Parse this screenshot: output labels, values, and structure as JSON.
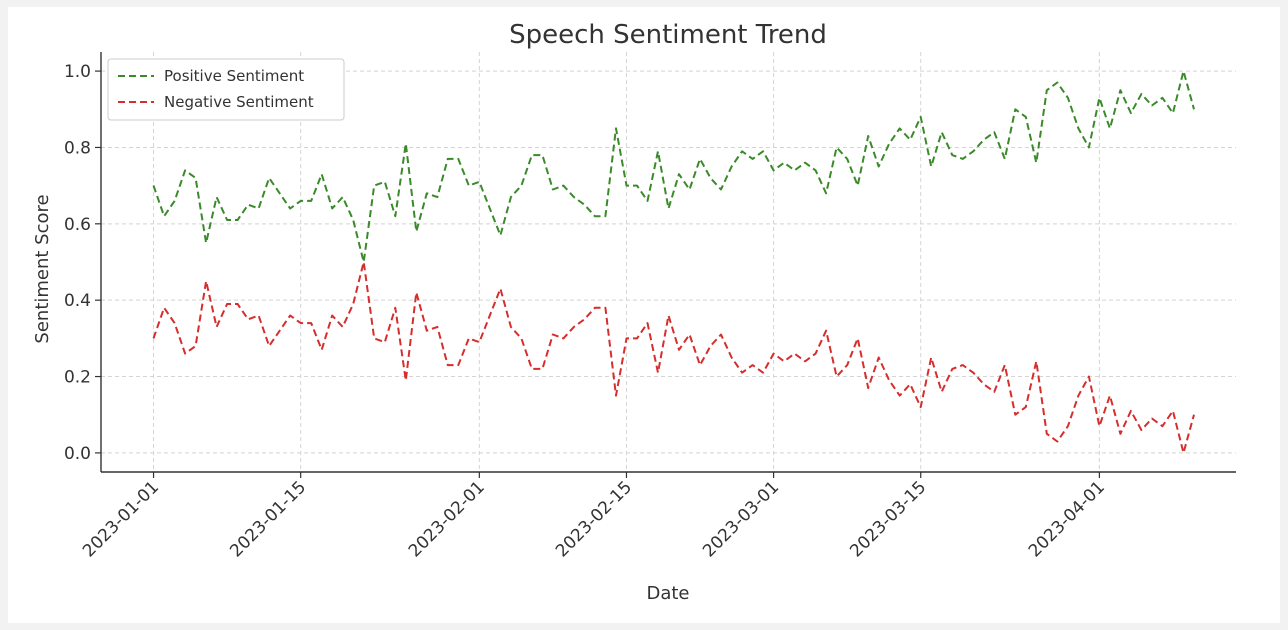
{
  "chart_data": {
    "type": "line",
    "title": "Speech Sentiment Trend",
    "xlabel": "Date",
    "ylabel": "Sentiment Score",
    "ylim": [
      -0.05,
      1.05
    ],
    "xlim": [
      "2022-12-27",
      "2023-04-14"
    ],
    "grid": true,
    "grid_style": "dashed",
    "legend_position": "top-left",
    "x_ticks": [
      "2023-01-01",
      "2023-01-15",
      "2023-02-01",
      "2023-02-15",
      "2023-03-01",
      "2023-03-15",
      "2023-04-01"
    ],
    "y_ticks": [
      "0.0",
      "0.2",
      "0.4",
      "0.6",
      "0.8",
      "1.0"
    ],
    "x": [
      "2023-01-01",
      "2023-01-02",
      "2023-01-03",
      "2023-01-04",
      "2023-01-05",
      "2023-01-06",
      "2023-01-07",
      "2023-01-08",
      "2023-01-09",
      "2023-01-10",
      "2023-01-11",
      "2023-01-12",
      "2023-01-13",
      "2023-01-14",
      "2023-01-15",
      "2023-01-16",
      "2023-01-17",
      "2023-01-18",
      "2023-01-19",
      "2023-01-20",
      "2023-01-21",
      "2023-01-22",
      "2023-01-23",
      "2023-01-24",
      "2023-01-25",
      "2023-01-26",
      "2023-01-27",
      "2023-01-28",
      "2023-01-29",
      "2023-01-30",
      "2023-01-31",
      "2023-02-01",
      "2023-02-02",
      "2023-02-03",
      "2023-02-04",
      "2023-02-05",
      "2023-02-06",
      "2023-02-07",
      "2023-02-08",
      "2023-02-09",
      "2023-02-10",
      "2023-02-11",
      "2023-02-12",
      "2023-02-13",
      "2023-02-14",
      "2023-02-15",
      "2023-02-16",
      "2023-02-17",
      "2023-02-18",
      "2023-02-19",
      "2023-02-20",
      "2023-02-21",
      "2023-02-22",
      "2023-02-23",
      "2023-02-24",
      "2023-02-25",
      "2023-02-26",
      "2023-02-27",
      "2023-02-28",
      "2023-03-01",
      "2023-03-02",
      "2023-03-03",
      "2023-03-04",
      "2023-03-05",
      "2023-03-06",
      "2023-03-07",
      "2023-03-08",
      "2023-03-09",
      "2023-03-10",
      "2023-03-11",
      "2023-03-12",
      "2023-03-13",
      "2023-03-14",
      "2023-03-15",
      "2023-03-16",
      "2023-03-17",
      "2023-03-18",
      "2023-03-19",
      "2023-03-20",
      "2023-03-21",
      "2023-03-22",
      "2023-03-23",
      "2023-03-24",
      "2023-03-25",
      "2023-03-26",
      "2023-03-27",
      "2023-03-28",
      "2023-03-29",
      "2023-03-30",
      "2023-03-31",
      "2023-04-01",
      "2023-04-02",
      "2023-04-03",
      "2023-04-04",
      "2023-04-05",
      "2023-04-06",
      "2023-04-07",
      "2023-04-08",
      "2023-04-09",
      "2023-04-10"
    ],
    "series": [
      {
        "name": "Positive Sentiment",
        "color": "#3a8a2a",
        "values": [
          0.7,
          0.62,
          0.66,
          0.74,
          0.72,
          0.55,
          0.67,
          0.61,
          0.61,
          0.65,
          0.64,
          0.72,
          0.68,
          0.64,
          0.66,
          0.66,
          0.73,
          0.64,
          0.67,
          0.61,
          0.5,
          0.7,
          0.71,
          0.62,
          0.81,
          0.58,
          0.68,
          0.67,
          0.77,
          0.77,
          0.7,
          0.71,
          0.64,
          0.57,
          0.67,
          0.7,
          0.78,
          0.78,
          0.69,
          0.7,
          0.67,
          0.65,
          0.62,
          0.62,
          0.85,
          0.7,
          0.7,
          0.66,
          0.79,
          0.64,
          0.73,
          0.69,
          0.77,
          0.72,
          0.69,
          0.75,
          0.79,
          0.77,
          0.79,
          0.74,
          0.76,
          0.74,
          0.76,
          0.74,
          0.68,
          0.8,
          0.77,
          0.7,
          0.83,
          0.75,
          0.81,
          0.85,
          0.82,
          0.88,
          0.75,
          0.84,
          0.78,
          0.77,
          0.79,
          0.82,
          0.84,
          0.77,
          0.9,
          0.88,
          0.76,
          0.95,
          0.97,
          0.93,
          0.85,
          0.8,
          0.93,
          0.85,
          0.95,
          0.89,
          0.94,
          0.91,
          0.93,
          0.89,
          1.0,
          0.9
        ]
      },
      {
        "name": "Negative Sentiment",
        "color": "#d62d2d",
        "values": [
          0.3,
          0.38,
          0.34,
          0.26,
          0.28,
          0.45,
          0.33,
          0.39,
          0.39,
          0.35,
          0.36,
          0.28,
          0.32,
          0.36,
          0.34,
          0.34,
          0.27,
          0.36,
          0.33,
          0.39,
          0.5,
          0.3,
          0.29,
          0.38,
          0.19,
          0.42,
          0.32,
          0.33,
          0.23,
          0.23,
          0.3,
          0.29,
          0.36,
          0.43,
          0.33,
          0.3,
          0.22,
          0.22,
          0.31,
          0.3,
          0.33,
          0.35,
          0.38,
          0.38,
          0.15,
          0.3,
          0.3,
          0.34,
          0.21,
          0.36,
          0.27,
          0.31,
          0.23,
          0.28,
          0.31,
          0.25,
          0.21,
          0.23,
          0.21,
          0.26,
          0.24,
          0.26,
          0.24,
          0.26,
          0.32,
          0.2,
          0.23,
          0.3,
          0.17,
          0.25,
          0.19,
          0.15,
          0.18,
          0.12,
          0.25,
          0.16,
          0.22,
          0.23,
          0.21,
          0.18,
          0.16,
          0.23,
          0.1,
          0.12,
          0.24,
          0.05,
          0.03,
          0.07,
          0.15,
          0.2,
          0.07,
          0.15,
          0.05,
          0.11,
          0.06,
          0.09,
          0.07,
          0.11,
          0.0,
          0.1
        ]
      }
    ]
  }
}
